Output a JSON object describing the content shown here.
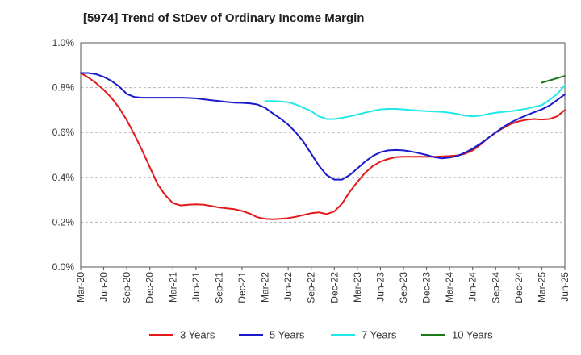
{
  "chart_data": {
    "type": "line",
    "title": "[5974]  Trend of StDev of Ordinary Income Margin",
    "xlabel": "",
    "ylabel": "",
    "ylim": [
      0,
      1.0
    ],
    "yticks": [
      0,
      0.2,
      0.4,
      0.6,
      0.8,
      1.0
    ],
    "ytick_labels": [
      "0.0%",
      "0.2%",
      "0.4%",
      "0.6%",
      "0.8%",
      "1.0%"
    ],
    "x_range": [
      "2020-03",
      "2025-06"
    ],
    "xtick_labels": [
      "Mar-20",
      "Jun-20",
      "Sep-20",
      "Dec-20",
      "Mar-21",
      "Jun-21",
      "Sep-21",
      "Dec-21",
      "Mar-22",
      "Jun-22",
      "Sep-22",
      "Dec-22",
      "Mar-23",
      "Jun-23",
      "Sep-23",
      "Dec-23",
      "Mar-24",
      "Jun-24",
      "Sep-24",
      "Dec-24",
      "Mar-25",
      "Jun-25"
    ],
    "grid": "horizontal dashed",
    "legend_position": "bottom",
    "series": [
      {
        "name": "3 Years",
        "color": "#e31a1c",
        "data": [
          [
            "2020-03",
            0.865
          ],
          [
            "2020-04",
            0.845
          ],
          [
            "2020-05",
            0.82
          ],
          [
            "2020-06",
            0.79
          ],
          [
            "2020-07",
            0.755
          ],
          [
            "2020-08",
            0.71
          ],
          [
            "2020-09",
            0.655
          ],
          [
            "2020-10",
            0.59
          ],
          [
            "2020-11",
            0.52
          ],
          [
            "2020-12",
            0.445
          ],
          [
            "2021-01",
            0.37
          ],
          [
            "2021-02",
            0.32
          ],
          [
            "2021-03",
            0.285
          ],
          [
            "2021-04",
            0.275
          ],
          [
            "2021-05",
            0.278
          ],
          [
            "2021-06",
            0.28
          ],
          [
            "2021-07",
            0.278
          ],
          [
            "2021-08",
            0.272
          ],
          [
            "2021-09",
            0.266
          ],
          [
            "2021-10",
            0.262
          ],
          [
            "2021-11",
            0.258
          ],
          [
            "2021-12",
            0.25
          ],
          [
            "2022-01",
            0.238
          ],
          [
            "2022-02",
            0.222
          ],
          [
            "2022-03",
            0.215
          ],
          [
            "2022-04",
            0.213
          ],
          [
            "2022-05",
            0.215
          ],
          [
            "2022-06",
            0.218
          ],
          [
            "2022-07",
            0.224
          ],
          [
            "2022-08",
            0.232
          ],
          [
            "2022-09",
            0.24
          ],
          [
            "2022-10",
            0.244
          ],
          [
            "2022-11",
            0.236
          ],
          [
            "2022-12",
            0.248
          ],
          [
            "2023-01",
            0.282
          ],
          [
            "2023-02",
            0.335
          ],
          [
            "2023-03",
            0.38
          ],
          [
            "2023-04",
            0.42
          ],
          [
            "2023-05",
            0.45
          ],
          [
            "2023-06",
            0.47
          ],
          [
            "2023-07",
            0.482
          ],
          [
            "2023-08",
            0.49
          ],
          [
            "2023-09",
            0.492
          ],
          [
            "2023-10",
            0.492
          ],
          [
            "2023-11",
            0.492
          ],
          [
            "2023-12",
            0.492
          ],
          [
            "2024-01",
            0.492
          ],
          [
            "2024-02",
            0.493
          ],
          [
            "2024-03",
            0.495
          ],
          [
            "2024-04",
            0.498
          ],
          [
            "2024-05",
            0.505
          ],
          [
            "2024-06",
            0.52
          ],
          [
            "2024-07",
            0.545
          ],
          [
            "2024-08",
            0.575
          ],
          [
            "2024-09",
            0.6
          ],
          [
            "2024-10",
            0.62
          ],
          [
            "2024-11",
            0.638
          ],
          [
            "2024-12",
            0.65
          ],
          [
            "2025-01",
            0.657
          ],
          [
            "2025-02",
            0.66
          ],
          [
            "2025-03",
            0.658
          ],
          [
            "2025-04",
            0.66
          ],
          [
            "2025-05",
            0.672
          ],
          [
            "2025-06",
            0.7
          ]
        ]
      },
      {
        "name": "5 Years",
        "color": "#1a1acc",
        "data": [
          [
            "2020-03",
            0.865
          ],
          [
            "2020-04",
            0.865
          ],
          [
            "2020-05",
            0.86
          ],
          [
            "2020-06",
            0.848
          ],
          [
            "2020-07",
            0.83
          ],
          [
            "2020-08",
            0.805
          ],
          [
            "2020-09",
            0.772
          ],
          [
            "2020-10",
            0.758
          ],
          [
            "2020-11",
            0.755
          ],
          [
            "2020-12",
            0.755
          ],
          [
            "2021-01",
            0.755
          ],
          [
            "2021-02",
            0.755
          ],
          [
            "2021-03",
            0.755
          ],
          [
            "2021-04",
            0.755
          ],
          [
            "2021-05",
            0.754
          ],
          [
            "2021-06",
            0.752
          ],
          [
            "2021-07",
            0.748
          ],
          [
            "2021-08",
            0.744
          ],
          [
            "2021-09",
            0.74
          ],
          [
            "2021-10",
            0.736
          ],
          [
            "2021-11",
            0.733
          ],
          [
            "2021-12",
            0.732
          ],
          [
            "2022-01",
            0.73
          ],
          [
            "2022-02",
            0.725
          ],
          [
            "2022-03",
            0.71
          ],
          [
            "2022-04",
            0.685
          ],
          [
            "2022-05",
            0.662
          ],
          [
            "2022-06",
            0.635
          ],
          [
            "2022-07",
            0.6
          ],
          [
            "2022-08",
            0.558
          ],
          [
            "2022-09",
            0.505
          ],
          [
            "2022-10",
            0.452
          ],
          [
            "2022-11",
            0.41
          ],
          [
            "2022-12",
            0.39
          ],
          [
            "2023-01",
            0.39
          ],
          [
            "2023-02",
            0.41
          ],
          [
            "2023-03",
            0.44
          ],
          [
            "2023-04",
            0.47
          ],
          [
            "2023-05",
            0.495
          ],
          [
            "2023-06",
            0.512
          ],
          [
            "2023-07",
            0.52
          ],
          [
            "2023-08",
            0.522
          ],
          [
            "2023-09",
            0.52
          ],
          [
            "2023-10",
            0.515
          ],
          [
            "2023-11",
            0.508
          ],
          [
            "2023-12",
            0.5
          ],
          [
            "2024-01",
            0.49
          ],
          [
            "2024-02",
            0.485
          ],
          [
            "2024-03",
            0.488
          ],
          [
            "2024-04",
            0.495
          ],
          [
            "2024-05",
            0.51
          ],
          [
            "2024-06",
            0.528
          ],
          [
            "2024-07",
            0.55
          ],
          [
            "2024-08",
            0.575
          ],
          [
            "2024-09",
            0.6
          ],
          [
            "2024-10",
            0.625
          ],
          [
            "2024-11",
            0.645
          ],
          [
            "2024-12",
            0.662
          ],
          [
            "2025-01",
            0.677
          ],
          [
            "2025-02",
            0.69
          ],
          [
            "2025-03",
            0.703
          ],
          [
            "2025-04",
            0.72
          ],
          [
            "2025-05",
            0.745
          ],
          [
            "2025-06",
            0.77
          ]
        ]
      },
      {
        "name": "7 Years",
        "color": "#22e8e8",
        "data": [
          [
            "2022-03",
            0.74
          ],
          [
            "2022-04",
            0.74
          ],
          [
            "2022-05",
            0.738
          ],
          [
            "2022-06",
            0.735
          ],
          [
            "2022-07",
            0.725
          ],
          [
            "2022-08",
            0.71
          ],
          [
            "2022-09",
            0.695
          ],
          [
            "2022-10",
            0.672
          ],
          [
            "2022-11",
            0.66
          ],
          [
            "2022-12",
            0.66
          ],
          [
            "2023-01",
            0.665
          ],
          [
            "2023-02",
            0.672
          ],
          [
            "2023-03",
            0.68
          ],
          [
            "2023-04",
            0.688
          ],
          [
            "2023-05",
            0.696
          ],
          [
            "2023-06",
            0.703
          ],
          [
            "2023-07",
            0.705
          ],
          [
            "2023-08",
            0.705
          ],
          [
            "2023-09",
            0.703
          ],
          [
            "2023-10",
            0.7
          ],
          [
            "2023-11",
            0.697
          ],
          [
            "2023-12",
            0.695
          ],
          [
            "2024-01",
            0.693
          ],
          [
            "2024-02",
            0.692
          ],
          [
            "2024-03",
            0.688
          ],
          [
            "2024-04",
            0.682
          ],
          [
            "2024-05",
            0.675
          ],
          [
            "2024-06",
            0.672
          ],
          [
            "2024-07",
            0.675
          ],
          [
            "2024-08",
            0.682
          ],
          [
            "2024-09",
            0.688
          ],
          [
            "2024-10",
            0.692
          ],
          [
            "2024-11",
            0.695
          ],
          [
            "2024-12",
            0.7
          ],
          [
            "2025-01",
            0.706
          ],
          [
            "2025-02",
            0.714
          ],
          [
            "2025-03",
            0.722
          ],
          [
            "2025-04",
            0.745
          ],
          [
            "2025-05",
            0.772
          ],
          [
            "2025-06",
            0.81
          ]
        ]
      },
      {
        "name": "10 Years",
        "color": "#1a7a1a",
        "data": [
          [
            "2025-03",
            0.822
          ],
          [
            "2025-06",
            0.852
          ]
        ]
      }
    ]
  }
}
